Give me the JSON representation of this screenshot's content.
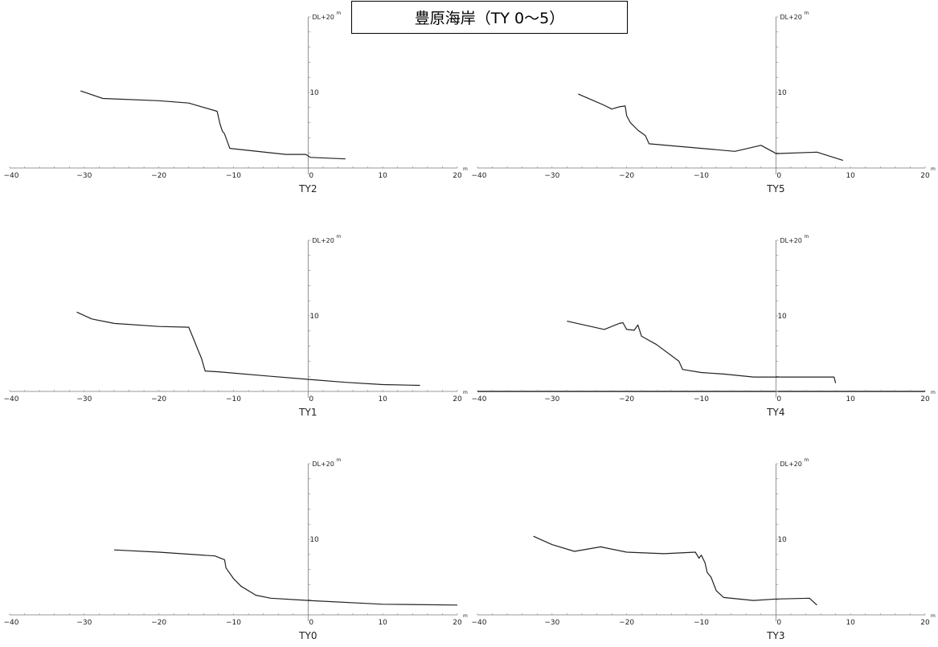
{
  "title": "豊原海岸（TY 0〜5）",
  "chart_data": [
    {
      "type": "line",
      "title": "TY2",
      "ytop_label": "DL+20",
      "unit": "m",
      "x_ticks": [
        -40,
        -30,
        -20,
        -10,
        0,
        10,
        20
      ],
      "y_ticks": [
        10
      ],
      "x_range": [
        -40,
        20
      ],
      "y_range": [
        0,
        20
      ],
      "x": [
        -30.5,
        -27.5,
        -20,
        -16,
        -12.2,
        -11.8,
        -11.5,
        -11.2,
        -10.5,
        -3,
        -0.3,
        0.3,
        5
      ],
      "y": [
        10.2,
        9.2,
        8.9,
        8.6,
        7.5,
        5.8,
        4.9,
        4.5,
        2.6,
        1.8,
        1.8,
        1.4,
        1.2
      ]
    },
    {
      "type": "line",
      "title": "TY5",
      "ytop_label": "DL+20",
      "unit": "m",
      "x_ticks": [
        -40,
        -30,
        -20,
        -10,
        0,
        10,
        20
      ],
      "y_ticks": [
        10
      ],
      "x_range": [
        -40,
        20
      ],
      "y_range": [
        0,
        20
      ],
      "x": [
        -26.5,
        -23,
        -22,
        -21,
        -20.2,
        -20,
        -19.5,
        -18.5,
        -17.5,
        -17,
        -5.5,
        -2,
        -0.3,
        0,
        5.5,
        9
      ],
      "y": [
        9.8,
        8.3,
        7.8,
        8.1,
        8.2,
        6.9,
        6,
        5,
        4.3,
        3.2,
        2.2,
        3,
        2.1,
        1.9,
        2.1,
        1
      ]
    },
    {
      "type": "line",
      "title": "TY1",
      "ytop_label": "DL+20",
      "unit": "m",
      "x_ticks": [
        -40,
        -30,
        -20,
        -10,
        0,
        10,
        20
      ],
      "y_ticks": [
        10
      ],
      "x_range": [
        -40,
        20
      ],
      "y_range": [
        0,
        20
      ],
      "x": [
        -31,
        -29,
        -26,
        -20,
        -16,
        -15.2,
        -14.8,
        -14.3,
        -13.8,
        -12,
        -5,
        0,
        5,
        10,
        15
      ],
      "y": [
        10.5,
        9.6,
        9,
        8.6,
        8.5,
        6.6,
        5.6,
        4.4,
        2.7,
        2.6,
        2,
        1.6,
        1.2,
        0.9,
        0.8
      ]
    },
    {
      "type": "line",
      "title": "TY4",
      "ytop_label": "DL+20",
      "unit": "m",
      "x_ticks": [
        -40,
        -30,
        -20,
        -10,
        0,
        10,
        20
      ],
      "y_ticks": [
        10
      ],
      "x_range": [
        -40,
        20
      ],
      "y_range": [
        0,
        20
      ],
      "x": [
        -28,
        -23,
        -21,
        -20.5,
        -20,
        -19,
        -18.5,
        -18,
        -16,
        -13,
        -12.5,
        -10,
        -7,
        -3,
        0,
        5,
        7.8,
        8
      ],
      "y": [
        9.3,
        8.2,
        9,
        9.1,
        8.2,
        8.1,
        8.8,
        7.3,
        6.2,
        4,
        2.9,
        2.5,
        2.3,
        1.9,
        1.9,
        1.9,
        1.9,
        1.1
      ]
    },
    {
      "type": "line",
      "title": "TY0",
      "ytop_label": "DL+20",
      "unit": "m",
      "x_ticks": [
        -40,
        -30,
        -20,
        -10,
        0,
        10,
        20
      ],
      "y_ticks": [
        10
      ],
      "x_range": [
        -40,
        20
      ],
      "y_range": [
        0,
        20
      ],
      "x": [
        -26,
        -20,
        -12.5,
        -11.2,
        -11,
        -10,
        -9,
        -7,
        -5,
        0,
        10,
        20
      ],
      "y": [
        8.6,
        8.3,
        7.8,
        7.3,
        6.2,
        4.8,
        3.8,
        2.6,
        2.2,
        1.9,
        1.4,
        1.3
      ]
    },
    {
      "type": "line",
      "title": "TY3",
      "ytop_label": "DL+20",
      "unit": "m",
      "x_ticks": [
        -40,
        -30,
        -20,
        -10,
        0,
        10,
        20
      ],
      "y_ticks": [
        10
      ],
      "x_range": [
        -40,
        20
      ],
      "y_range": [
        0,
        20
      ],
      "x": [
        -32.5,
        -30,
        -27,
        -23.5,
        -20,
        -15,
        -10.8,
        -10.3,
        -10,
        -9.5,
        -9.2,
        -8.7,
        -8,
        -7,
        -3,
        0,
        4.5,
        5.5
      ],
      "y": [
        10.4,
        9.3,
        8.4,
        9,
        8.3,
        8.1,
        8.3,
        7.5,
        7.9,
        6.9,
        5.6,
        5,
        3.2,
        2.3,
        1.9,
        2.1,
        2.2,
        1.3
      ]
    }
  ]
}
